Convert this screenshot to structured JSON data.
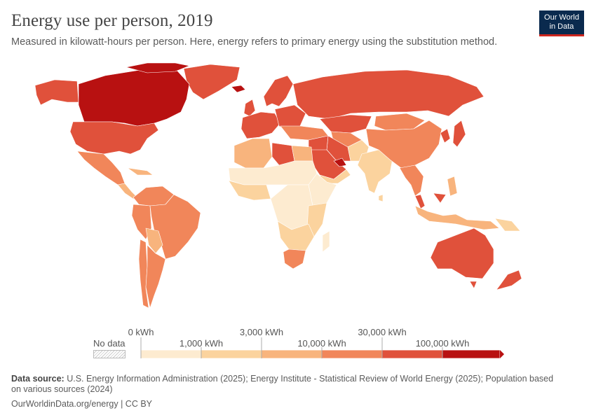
{
  "header": {
    "title": "Energy use per person, 2019",
    "subtitle": "Measured in kilowatt-hours per person. Here, energy refers to primary energy using the substitution method."
  },
  "logo": {
    "line1": "Our World",
    "line2": "in Data"
  },
  "legend": {
    "no_data_label": "No data",
    "ticks_top": [
      "0 kWh",
      "3,000 kWh",
      "30,000 kWh"
    ],
    "ticks_bottom": [
      "1,000 kWh",
      "10,000 kWh",
      "100,000 kWh"
    ],
    "bins": [
      {
        "from": 0,
        "to": 1000,
        "color": "#fdebd0"
      },
      {
        "from": 1000,
        "to": 3000,
        "color": "#fbd39e"
      },
      {
        "from": 3000,
        "to": 10000,
        "color": "#f8b47d"
      },
      {
        "from": 10000,
        "to": 30000,
        "color": "#f1865a"
      },
      {
        "from": 30000,
        "to": 100000,
        "color": "#e0513b"
      },
      {
        "from": 100000,
        "to": null,
        "color": "#b81111"
      }
    ]
  },
  "footer": {
    "source_label": "Data source:",
    "source_text": "U.S. Energy Information Administration (2025); Energy Institute - Statistical Review of World Energy (2025); Population based",
    "source_text2": "on various sources (2024)",
    "link": "OurWorldinData.org/energy | CC BY"
  }
}
